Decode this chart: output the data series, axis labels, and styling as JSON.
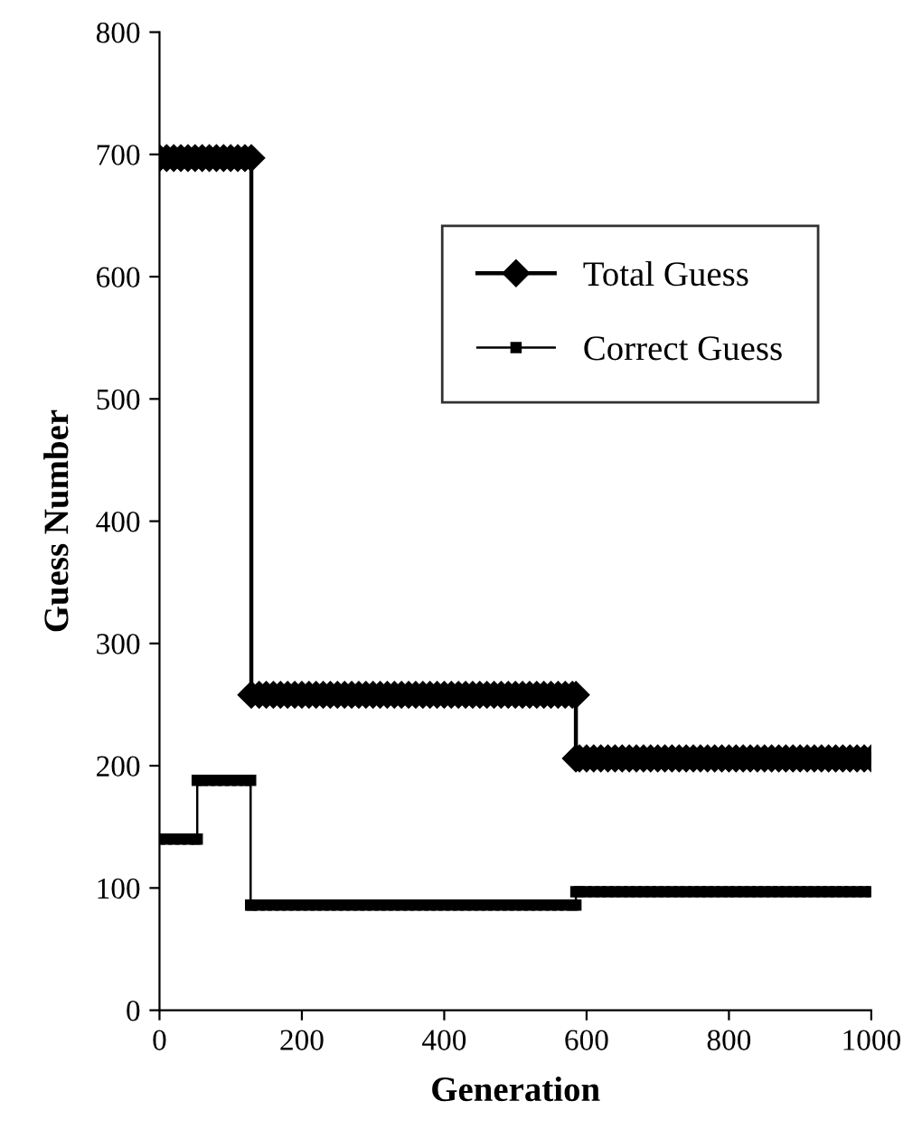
{
  "chart_data": {
    "type": "line",
    "xlabel": "Generation",
    "ylabel": "Guess Number",
    "xlim": [
      0,
      1000
    ],
    "xticks": [
      0,
      200,
      400,
      600,
      800,
      1000
    ],
    "ylim": [
      0,
      800
    ],
    "yticks": [
      0,
      100,
      200,
      300,
      400,
      500,
      600,
      700,
      800
    ],
    "grid": false,
    "legend": "top right",
    "line_style": "solid",
    "series": [
      {
        "name": "Total Guess",
        "color": "#000000",
        "marker": "diamond",
        "x": [
          0,
          10,
          20,
          30,
          40,
          50,
          60,
          70,
          80,
          90,
          100,
          110,
          120,
          129,
          129,
          140,
          150,
          160,
          170,
          180,
          190,
          200,
          210,
          220,
          230,
          240,
          250,
          260,
          270,
          280,
          290,
          300,
          310,
          320,
          330,
          340,
          350,
          360,
          370,
          380,
          390,
          400,
          410,
          420,
          430,
          440,
          450,
          460,
          470,
          480,
          490,
          500,
          510,
          520,
          530,
          540,
          550,
          560,
          570,
          580,
          585,
          585,
          590,
          600,
          610,
          620,
          630,
          640,
          650,
          660,
          670,
          680,
          690,
          700,
          710,
          720,
          730,
          740,
          750,
          760,
          770,
          780,
          790,
          800,
          810,
          820,
          830,
          840,
          850,
          860,
          870,
          880,
          890,
          900,
          910,
          920,
          930,
          940,
          950,
          960,
          970,
          980,
          990,
          1000
        ],
        "values": [
          697,
          697,
          697,
          697,
          697,
          697,
          697,
          697,
          697,
          697,
          697,
          697,
          697,
          697,
          258,
          258,
          258,
          258,
          258,
          258,
          258,
          258,
          258,
          258,
          258,
          258,
          258,
          258,
          258,
          258,
          258,
          258,
          258,
          258,
          258,
          258,
          258,
          258,
          258,
          258,
          258,
          258,
          258,
          258,
          258,
          258,
          258,
          258,
          258,
          258,
          258,
          258,
          258,
          258,
          258,
          258,
          258,
          258,
          258,
          258,
          258,
          206,
          206,
          206,
          206,
          206,
          206,
          206,
          206,
          206,
          206,
          206,
          206,
          206,
          206,
          206,
          206,
          206,
          206,
          206,
          206,
          206,
          206,
          206,
          206,
          206,
          206,
          206,
          206,
          206,
          206,
          206,
          206,
          206,
          206,
          206,
          206,
          206,
          206,
          206,
          206,
          206,
          206,
          206
        ]
      },
      {
        "name": "Correct Guess",
        "color": "#000000",
        "marker": "square",
        "x": [
          0,
          10,
          20,
          30,
          40,
          50,
          53,
          53,
          60,
          70,
          80,
          90,
          100,
          110,
          120,
          128,
          128,
          130,
          140,
          150,
          160,
          170,
          180,
          190,
          200,
          210,
          220,
          230,
          240,
          250,
          260,
          270,
          280,
          290,
          300,
          310,
          320,
          330,
          340,
          350,
          360,
          370,
          380,
          390,
          400,
          410,
          420,
          430,
          440,
          450,
          460,
          470,
          480,
          490,
          500,
          510,
          520,
          530,
          540,
          550,
          560,
          570,
          580,
          585,
          585,
          590,
          600,
          610,
          620,
          630,
          640,
          650,
          660,
          670,
          680,
          690,
          700,
          710,
          720,
          730,
          740,
          750,
          760,
          770,
          780,
          790,
          800,
          810,
          820,
          830,
          840,
          850,
          860,
          870,
          880,
          890,
          900,
          910,
          920,
          930,
          940,
          950,
          960,
          970,
          980,
          990,
          1000
        ],
        "values": [
          140,
          140,
          140,
          140,
          140,
          140,
          140,
          188,
          188,
          188,
          188,
          188,
          188,
          188,
          188,
          188,
          86,
          86,
          86,
          86,
          86,
          86,
          86,
          86,
          86,
          86,
          86,
          86,
          86,
          86,
          86,
          86,
          86,
          86,
          86,
          86,
          86,
          86,
          86,
          86,
          86,
          86,
          86,
          86,
          86,
          86,
          86,
          86,
          86,
          86,
          86,
          86,
          86,
          86,
          86,
          86,
          86,
          86,
          86,
          86,
          86,
          86,
          86,
          86,
          97,
          97,
          97,
          97,
          97,
          97,
          97,
          97,
          97,
          97,
          97,
          97,
          97,
          97,
          97,
          97,
          97,
          97,
          97,
          97,
          97,
          97,
          97,
          97,
          97,
          97,
          97,
          97,
          97,
          97,
          97,
          97,
          97,
          97,
          97,
          97,
          97,
          97,
          97,
          97,
          97,
          97,
          97
        ]
      }
    ]
  }
}
